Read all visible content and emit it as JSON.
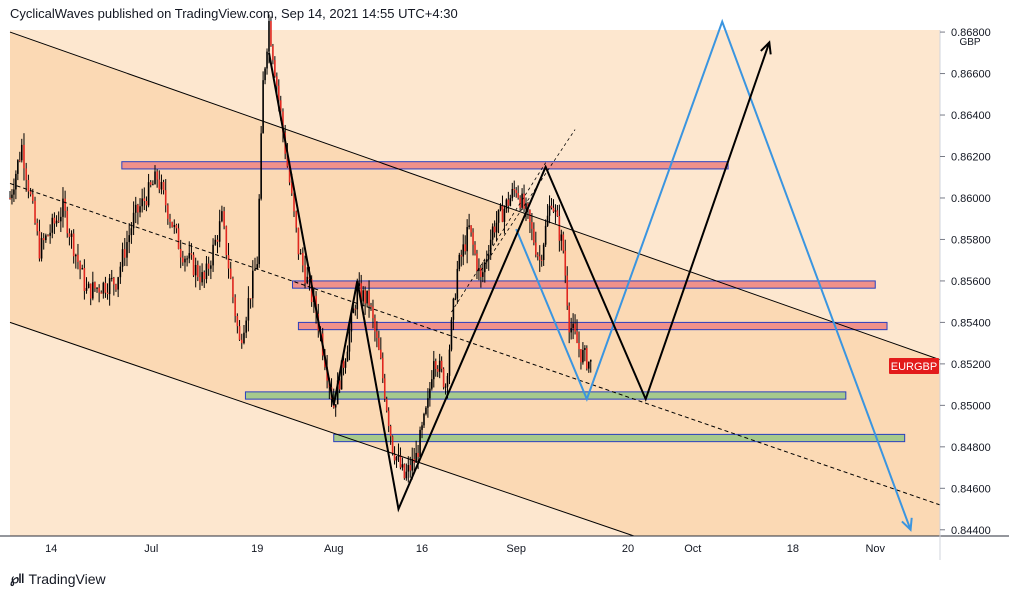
{
  "header": {
    "text": "CyclicalWaves published on TradingView.com, Sep 14, 2021 14:55 UTC+4:30"
  },
  "footer": {
    "logo_icon": "tradingview-logo-icon",
    "brand": "TradingView"
  },
  "price_axis": {
    "currency": "GBP",
    "current_label": "EURGBP",
    "ticks": [
      "0.86800",
      "0.86600",
      "0.86400",
      "0.86200",
      "0.86000",
      "0.85800",
      "0.85600",
      "0.85400",
      "0.85200",
      "0.85000",
      "0.84800",
      "0.84600",
      "0.84400"
    ]
  },
  "time_axis": {
    "ticks": [
      "14",
      "Jul",
      "19",
      "Aug",
      "16",
      "Sep",
      "20",
      "Oct",
      "18",
      "Nov"
    ]
  },
  "colors": {
    "channel_fill": "#fbd9b4",
    "channel_fill_alt": "#fde7cf",
    "candle": "#e0271f",
    "resistance_zone": "#f0918a",
    "support_zone": "#a6c98c",
    "zone_border": "#2a3fbf",
    "projection_blue": "#3a95e0",
    "wave_black": "#000000",
    "current_label_bg": "#e31b1b"
  },
  "chart_data": {
    "type": "candlestick",
    "title": "",
    "xlabel": "",
    "ylabel": "",
    "x_range": [
      "2021-06-07",
      "2021-11-12"
    ],
    "ylim": [
      0.8437,
      0.8681
    ],
    "last_price": 0.8519,
    "price_series": [
      [
        "2021-06-07",
        0.86
      ],
      [
        "2021-06-09",
        0.8625
      ],
      [
        "2021-06-12",
        0.8575
      ],
      [
        "2021-06-16",
        0.8595
      ],
      [
        "2021-06-20",
        0.8555
      ],
      [
        "2021-06-25",
        0.856
      ],
      [
        "2021-06-28",
        0.859
      ],
      [
        "2021-07-02",
        0.861
      ],
      [
        "2021-07-06",
        0.8575
      ],
      [
        "2021-07-10",
        0.856
      ],
      [
        "2021-07-13",
        0.859
      ],
      [
        "2021-07-16",
        0.853
      ],
      [
        "2021-07-19",
        0.857
      ],
      [
        "2021-07-20",
        0.8655
      ],
      [
        "2021-07-21",
        0.8685
      ],
      [
        "2021-07-23",
        0.864
      ],
      [
        "2021-07-26",
        0.8575
      ],
      [
        "2021-07-29",
        0.8545
      ],
      [
        "2021-08-01",
        0.85
      ],
      [
        "2021-08-03",
        0.8525
      ],
      [
        "2021-08-05",
        0.8555
      ],
      [
        "2021-08-07",
        0.855
      ],
      [
        "2021-08-09",
        0.852
      ],
      [
        "2021-08-11",
        0.848
      ],
      [
        "2021-08-13",
        0.8465
      ],
      [
        "2021-08-15",
        0.8475
      ],
      [
        "2021-08-17",
        0.85
      ],
      [
        "2021-08-18",
        0.8525
      ],
      [
        "2021-08-20",
        0.851
      ],
      [
        "2021-08-22",
        0.8565
      ],
      [
        "2021-08-24",
        0.8585
      ],
      [
        "2021-08-26",
        0.856
      ],
      [
        "2021-08-28",
        0.8585
      ],
      [
        "2021-08-30",
        0.8595
      ],
      [
        "2021-09-01",
        0.8605
      ],
      [
        "2021-09-03",
        0.859
      ],
      [
        "2021-09-05",
        0.857
      ],
      [
        "2021-09-07",
        0.86
      ],
      [
        "2021-09-09",
        0.8575
      ],
      [
        "2021-09-10",
        0.854
      ],
      [
        "2021-09-12",
        0.8525
      ],
      [
        "2021-09-14",
        0.8519
      ]
    ],
    "zones": [
      {
        "kind": "resistance",
        "top": 0.86175,
        "bottom": 0.8614,
        "from": "2021-06-26",
        "to": "2021-10-07"
      },
      {
        "kind": "resistance",
        "top": 0.856,
        "bottom": 0.85565,
        "from": "2021-07-25",
        "to": "2021-11-01"
      },
      {
        "kind": "resistance",
        "top": 0.854,
        "bottom": 0.85365,
        "from": "2021-07-26",
        "to": "2021-11-03"
      },
      {
        "kind": "support",
        "top": 0.85065,
        "bottom": 0.8503,
        "from": "2021-07-17",
        "to": "2021-10-27"
      },
      {
        "kind": "support",
        "top": 0.8486,
        "bottom": 0.84825,
        "from": "2021-08-01",
        "to": "2021-11-06"
      }
    ],
    "channel": {
      "upper": [
        [
          "2021-06-07",
          0.868
        ],
        [
          "2021-11-12",
          0.8522
        ]
      ],
      "middle": [
        [
          "2021-06-07",
          0.8607
        ],
        [
          "2021-11-12",
          0.8452
        ]
      ],
      "lower": [
        [
          "2021-06-07",
          0.854
        ],
        [
          "2021-09-21",
          0.8437
        ]
      ]
    },
    "wave_path": [
      [
        "2021-07-21",
        0.867
      ],
      [
        "2021-08-01",
        0.85
      ],
      [
        "2021-08-05",
        0.856
      ],
      [
        "2021-08-12",
        0.845
      ],
      [
        "2021-09-06",
        0.8615
      ],
      [
        "2021-09-23",
        0.8503
      ],
      [
        "2021-10-14",
        0.8675
      ]
    ],
    "blue_projection": [
      [
        "2021-09-01",
        0.8585
      ],
      [
        "2021-09-13",
        0.8503
      ],
      [
        "2021-10-06",
        0.8685
      ],
      [
        "2021-11-07",
        0.844
      ]
    ],
    "dashed_channel": [
      [
        [
          "2021-08-21",
          0.8545
        ],
        [
          "2021-09-06",
          0.8617
        ]
      ],
      [
        [
          "2021-08-26",
          0.8565
        ],
        [
          "2021-09-11",
          0.8633
        ]
      ]
    ]
  }
}
